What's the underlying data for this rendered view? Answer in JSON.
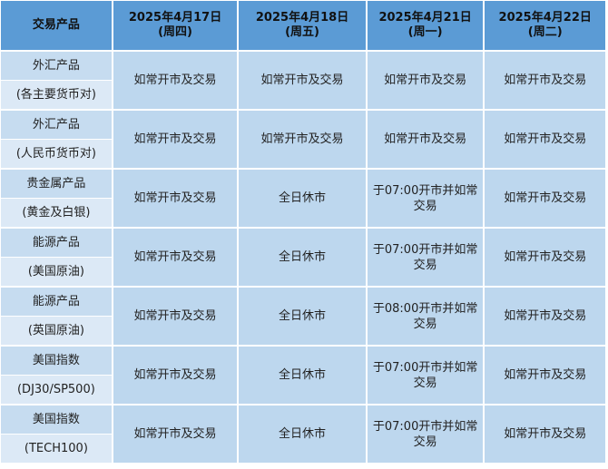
{
  "header": {
    "product": "交易产品",
    "dates": [
      {
        "date": "2025年4月17日",
        "weekday": "(周四)"
      },
      {
        "date": "2025年4月18日",
        "weekday": "(周五)"
      },
      {
        "date": "2025年4月21日",
        "weekday": "(周一)"
      },
      {
        "date": "2025年4月22日",
        "weekday": "(周二)"
      }
    ]
  },
  "rows": [
    {
      "name": "外汇产品",
      "detail": "(各主要货币对)",
      "cells": [
        "如常开市及交易",
        "如常开市及交易",
        "如常开市及交易",
        "如常开市及交易"
      ]
    },
    {
      "name": "外汇产品",
      "detail": "(人民币货币对)",
      "cells": [
        "如常开市及交易",
        "如常开市及交易",
        "如常开市及交易",
        "如常开市及交易"
      ]
    },
    {
      "name": "贵金属产品",
      "detail": "(黄金及白银)",
      "cells": [
        "如常开市及交易",
        "全日休市",
        "于07:00开市并如常交易",
        "如常开市及交易"
      ]
    },
    {
      "name": "能源产品",
      "detail": "(美国原油)",
      "cells": [
        "如常开市及交易",
        "全日休市",
        "于07:00开市并如常交易",
        "如常开市及交易"
      ]
    },
    {
      "name": "能源产品",
      "detail": "(英国原油)",
      "cells": [
        "如常开市及交易",
        "全日休市",
        "于08:00开市并如常交易",
        "如常开市及交易"
      ]
    },
    {
      "name": "美国指数",
      "detail": "(DJ30/SP500)",
      "cells": [
        "如常开市及交易",
        "全日休市",
        "于07:00开市并如常交易",
        "如常开市及交易"
      ]
    },
    {
      "name": "美国指数",
      "detail": "(TECH100)",
      "cells": [
        "如常开市及交易",
        "全日休市",
        "于07:00开市并如常交易",
        "如常开市及交易"
      ]
    }
  ]
}
